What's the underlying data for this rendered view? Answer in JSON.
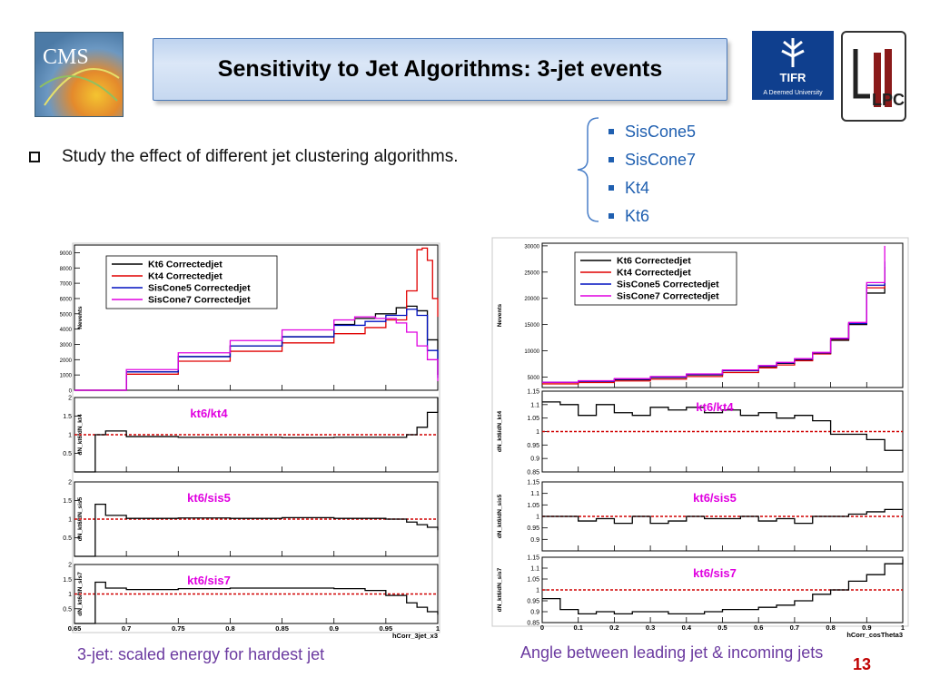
{
  "slide": {
    "title": "Sensitivity to Jet Algorithms: 3-jet events",
    "bullet": "Study the effect of different jet clustering algorithms.",
    "algorithms": [
      "SisCone5",
      "SisCone7",
      "Kt4",
      "Kt6"
    ],
    "caption_left": "3-jet: scaled energy for hardest jet",
    "caption_right": "Angle between leading jet & incoming jets",
    "page_number": "13"
  },
  "logos": {
    "left": "CMS",
    "right1": "TIFR",
    "right1_sub": "A Deemed University",
    "right2": "LPC"
  },
  "colors": {
    "kt6": "#000000",
    "kt4": "#e00000",
    "sis5": "#0010c0",
    "sis7": "#e000e0",
    "ratio_label": "#e000e0",
    "unity_line": "#d00000"
  },
  "chart_data": [
    {
      "type": "line",
      "step": true,
      "xlabel": "hCorr_3jet_x3",
      "x_ticks": [
        0.65,
        0.7,
        0.75,
        0.8,
        0.85,
        0.9,
        0.95,
        1
      ],
      "xlim": [
        0.65,
        1.0
      ],
      "main": {
        "ylabel": "Nevents",
        "ylim": [
          0,
          9500
        ],
        "y_ticks": [
          0,
          1000,
          2000,
          3000,
          4000,
          5000,
          6000,
          7000,
          8000,
          9000
        ],
        "legend": [
          "Kt6 Correctedjet",
          "Kt4 Correctedjet",
          "SisCone5 Correctedjet",
          "SisCone7 Correctedjet"
        ],
        "legend_position": "top-left",
        "series": [
          {
            "name": "Kt6 Correctedjet",
            "x": [
              0.65,
              0.7,
              0.75,
              0.8,
              0.85,
              0.9,
              0.92,
              0.94,
              0.96,
              0.97,
              0.98,
              0.99,
              1.0
            ],
            "values": [
              0,
              1200,
              2200,
              2900,
              3500,
              4300,
              4700,
              5000,
              5400,
              5500,
              5200,
              3300,
              1000
            ]
          },
          {
            "name": "Kt4 Correctedjet",
            "x": [
              0.65,
              0.7,
              0.75,
              0.8,
              0.85,
              0.9,
              0.93,
              0.95,
              0.97,
              0.98,
              0.985,
              0.99,
              0.995,
              1.0
            ],
            "values": [
              0,
              1050,
              1900,
              2550,
              3100,
              3700,
              4100,
              4600,
              6500,
              9200,
              9300,
              8500,
              6000,
              4800
            ]
          },
          {
            "name": "SisCone5 Correctedjet",
            "x": [
              0.65,
              0.7,
              0.75,
              0.8,
              0.85,
              0.9,
              0.93,
              0.95,
              0.97,
              0.98,
              0.99,
              1.0
            ],
            "values": [
              0,
              1200,
              2200,
              2900,
              3500,
              4250,
              4500,
              4900,
              5300,
              4900,
              2600,
              800
            ]
          },
          {
            "name": "SisCone7 Correctedjet",
            "x": [
              0.65,
              0.7,
              0.75,
              0.8,
              0.85,
              0.9,
              0.92,
              0.94,
              0.96,
              0.97,
              0.98,
              0.99,
              1.0
            ],
            "values": [
              0,
              1350,
              2450,
              3250,
              3950,
              4600,
              4800,
              4700,
              4400,
              3800,
              2900,
              2000,
              600
            ]
          }
        ]
      },
      "ratios": [
        {
          "label": "kt6/kt4",
          "ylabel": "dN_kt6/dN_kt4",
          "ylim": [
            0,
            2
          ],
          "y_ticks": [
            0.5,
            1,
            1.5,
            2
          ],
          "x": [
            0.65,
            0.665,
            0.67,
            0.68,
            0.7,
            0.75,
            0.8,
            0.85,
            0.9,
            0.95,
            0.97,
            0.98,
            0.99,
            1.0
          ],
          "values": [
            0,
            0,
            1.0,
            1.1,
            0.95,
            0.93,
            0.93,
            0.92,
            0.93,
            0.93,
            1.0,
            1.2,
            1.6,
            2.0
          ]
        },
        {
          "label": "kt6/sis5",
          "ylabel": "dN_kt6/dN_sis5",
          "ylim": [
            0,
            2
          ],
          "y_ticks": [
            0.5,
            1,
            1.5,
            2
          ],
          "x": [
            0.65,
            0.665,
            0.67,
            0.68,
            0.7,
            0.75,
            0.8,
            0.85,
            0.9,
            0.95,
            0.97,
            0.98,
            0.99,
            1.0
          ],
          "values": [
            0,
            0,
            1.4,
            1.1,
            1.02,
            1.03,
            1.02,
            1.04,
            1.02,
            1.0,
            0.92,
            0.85,
            0.78,
            0.7
          ]
        },
        {
          "label": "kt6/sis7",
          "ylabel": "dN_kt6/dN_sis7",
          "ylim": [
            0,
            2
          ],
          "y_ticks": [
            0.5,
            1,
            1.5,
            2
          ],
          "x": [
            0.65,
            0.665,
            0.67,
            0.68,
            0.7,
            0.75,
            0.8,
            0.85,
            0.9,
            0.93,
            0.95,
            0.97,
            0.98,
            0.99,
            1.0
          ],
          "values": [
            0,
            0,
            1.4,
            1.2,
            1.15,
            1.18,
            1.2,
            1.2,
            1.18,
            1.12,
            0.95,
            0.7,
            0.55,
            0.4,
            0.3
          ]
        }
      ]
    },
    {
      "type": "line",
      "step": true,
      "xlabel": "hCorr_cosTheta3",
      "x_ticks": [
        0,
        0.1,
        0.2,
        0.3,
        0.4,
        0.5,
        0.6,
        0.7,
        0.8,
        0.9,
        1
      ],
      "xlim": [
        0,
        1.0
      ],
      "main": {
        "ylabel": "Nevents",
        "ylim": [
          3000,
          30500
        ],
        "y_ticks": [
          5000,
          10000,
          15000,
          20000,
          25000,
          30000
        ],
        "legend": [
          "Kt6 Correctedjet",
          "Kt4 Correctedjet",
          "SisCone5 Correctedjet",
          "SisCone7 Correctedjet"
        ],
        "legend_position": "top-left",
        "series": [
          {
            "name": "Kt6 Correctedjet",
            "x": [
              0,
              0.1,
              0.2,
              0.3,
              0.4,
              0.5,
              0.6,
              0.65,
              0.7,
              0.75,
              0.8,
              0.85,
              0.9,
              0.95
            ],
            "values": [
              4000,
              4200,
              4500,
              4900,
              5400,
              6200,
              7000,
              7600,
              8300,
              9500,
              12000,
              15000,
              21000,
              26000
            ]
          },
          {
            "name": "Kt4 Correctedjet",
            "x": [
              0,
              0.1,
              0.2,
              0.3,
              0.4,
              0.5,
              0.6,
              0.65,
              0.7,
              0.75,
              0.8,
              0.85,
              0.9,
              0.95
            ],
            "values": [
              3700,
              3950,
              4250,
              4600,
              5100,
              5850,
              6750,
              7300,
              8100,
              9400,
              12200,
              15200,
              22000,
              24000
            ]
          },
          {
            "name": "SisCone5 Correctedjet",
            "x": [
              0,
              0.1,
              0.2,
              0.3,
              0.4,
              0.5,
              0.6,
              0.65,
              0.7,
              0.75,
              0.8,
              0.85,
              0.9,
              0.95
            ],
            "values": [
              4000,
              4200,
              4600,
              5000,
              5500,
              6250,
              7100,
              7700,
              8400,
              9600,
              12300,
              15200,
              22500,
              27000
            ]
          },
          {
            "name": "SisCone7 Correctedjet",
            "x": [
              0,
              0.1,
              0.2,
              0.3,
              0.4,
              0.5,
              0.6,
              0.65,
              0.7,
              0.75,
              0.8,
              0.85,
              0.9,
              0.95
            ],
            "values": [
              4000,
              4300,
              4700,
              5100,
              5600,
              6350,
              7200,
              7800,
              8500,
              9700,
              12400,
              15400,
              23000,
              30000
            ]
          }
        ]
      },
      "ratios": [
        {
          "label": "kt6/kt4",
          "ylabel": "dN_kt6/dN_kt4",
          "ylim": [
            0.85,
            1.15
          ],
          "y_ticks": [
            0.85,
            0.9,
            0.95,
            1,
            1.05,
            1.1,
            1.15
          ],
          "x": [
            0,
            0.05,
            0.1,
            0.15,
            0.2,
            0.25,
            0.3,
            0.35,
            0.4,
            0.45,
            0.5,
            0.55,
            0.6,
            0.65,
            0.7,
            0.75,
            0.8,
            0.85,
            0.9,
            0.95,
            1.0
          ],
          "values": [
            1.11,
            1.1,
            1.06,
            1.1,
            1.07,
            1.06,
            1.09,
            1.08,
            1.09,
            1.07,
            1.08,
            1.06,
            1.07,
            1.05,
            1.06,
            1.04,
            0.99,
            0.99,
            0.97,
            0.93,
            0.93
          ]
        },
        {
          "label": "kt6/sis5",
          "ylabel": "dN_kt6/dN_sis5",
          "ylim": [
            0.85,
            1.15
          ],
          "y_ticks": [
            0.9,
            0.95,
            1,
            1.05,
            1.1,
            1.15
          ],
          "x": [
            0,
            0.05,
            0.1,
            0.15,
            0.2,
            0.25,
            0.3,
            0.35,
            0.4,
            0.45,
            0.5,
            0.55,
            0.6,
            0.65,
            0.7,
            0.75,
            0.8,
            0.85,
            0.9,
            0.95,
            1.0
          ],
          "values": [
            1.0,
            1.0,
            0.98,
            0.99,
            0.97,
            1.0,
            0.97,
            0.98,
            1.0,
            0.99,
            0.99,
            1.0,
            0.98,
            0.99,
            0.97,
            1.0,
            1.0,
            1.01,
            1.02,
            1.03,
            1.03
          ]
        },
        {
          "label": "kt6/sis7",
          "ylabel": "dN_kt6/dN_sis7",
          "ylim": [
            0.85,
            1.15
          ],
          "y_ticks": [
            0.85,
            0.9,
            0.95,
            1,
            1.05,
            1.1,
            1.15
          ],
          "x": [
            0,
            0.05,
            0.1,
            0.15,
            0.2,
            0.25,
            0.3,
            0.35,
            0.4,
            0.45,
            0.5,
            0.55,
            0.6,
            0.65,
            0.7,
            0.75,
            0.8,
            0.85,
            0.9,
            0.95,
            1.0
          ],
          "values": [
            0.96,
            0.91,
            0.89,
            0.9,
            0.89,
            0.9,
            0.9,
            0.89,
            0.89,
            0.9,
            0.91,
            0.91,
            0.92,
            0.93,
            0.95,
            0.98,
            1.0,
            1.04,
            1.07,
            1.12,
            1.14
          ]
        }
      ]
    }
  ]
}
